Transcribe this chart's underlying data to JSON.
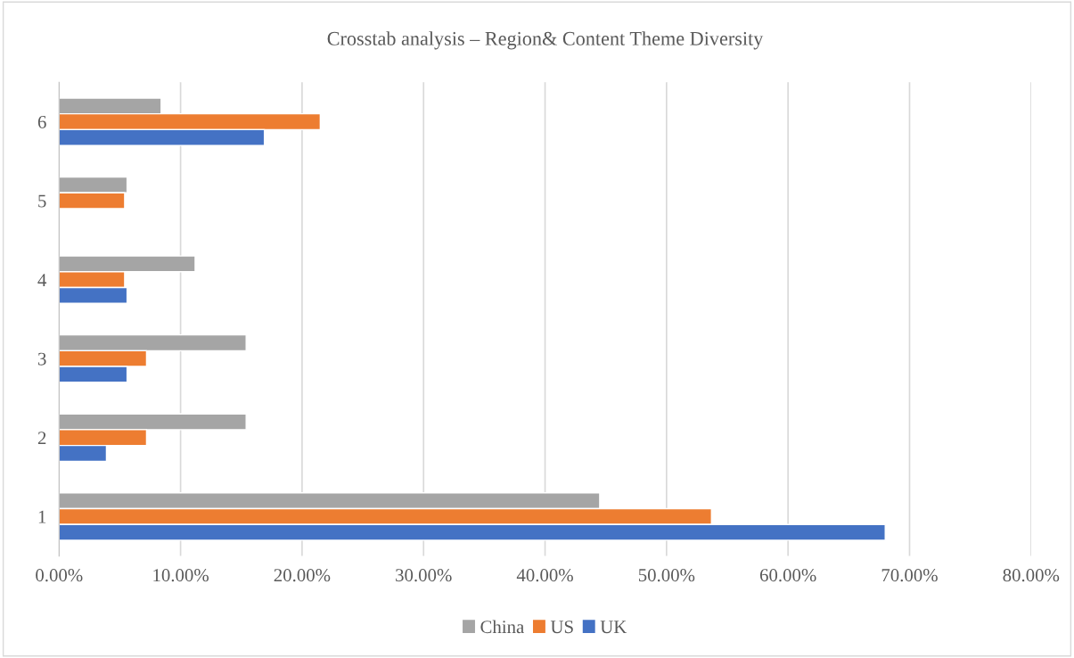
{
  "chart_data": {
    "type": "bar",
    "orientation": "horizontal",
    "title": "Crosstab analysis – Region& Content Theme Diversity",
    "categories": [
      "6",
      "5",
      "4",
      "3",
      "2",
      "1"
    ],
    "series": [
      {
        "name": "China",
        "color": "#a5a5a5",
        "values": [
          8.4,
          5.6,
          11.2,
          15.4,
          15.4,
          44.5
        ]
      },
      {
        "name": "US",
        "color": "#ed7d31",
        "values": [
          21.5,
          5.4,
          5.4,
          7.2,
          7.2,
          53.7
        ]
      },
      {
        "name": "UK",
        "color": "#4472c4",
        "values": [
          16.9,
          null,
          5.6,
          5.6,
          3.9,
          68.0
        ]
      }
    ],
    "xlim": [
      0,
      80
    ],
    "xticks": [
      {
        "value": 0,
        "label": "0.00%"
      },
      {
        "value": 10,
        "label": "10.00%"
      },
      {
        "value": 20,
        "label": "20.00%"
      },
      {
        "value": 30,
        "label": "30.00%"
      },
      {
        "value": 40,
        "label": "40.00%"
      },
      {
        "value": 50,
        "label": "50.00%"
      },
      {
        "value": 60,
        "label": "60.00%"
      },
      {
        "value": 70,
        "label": "70.00%"
      },
      {
        "value": 80,
        "label": "80.00%"
      }
    ],
    "grid": "x",
    "legend": "bottom"
  }
}
